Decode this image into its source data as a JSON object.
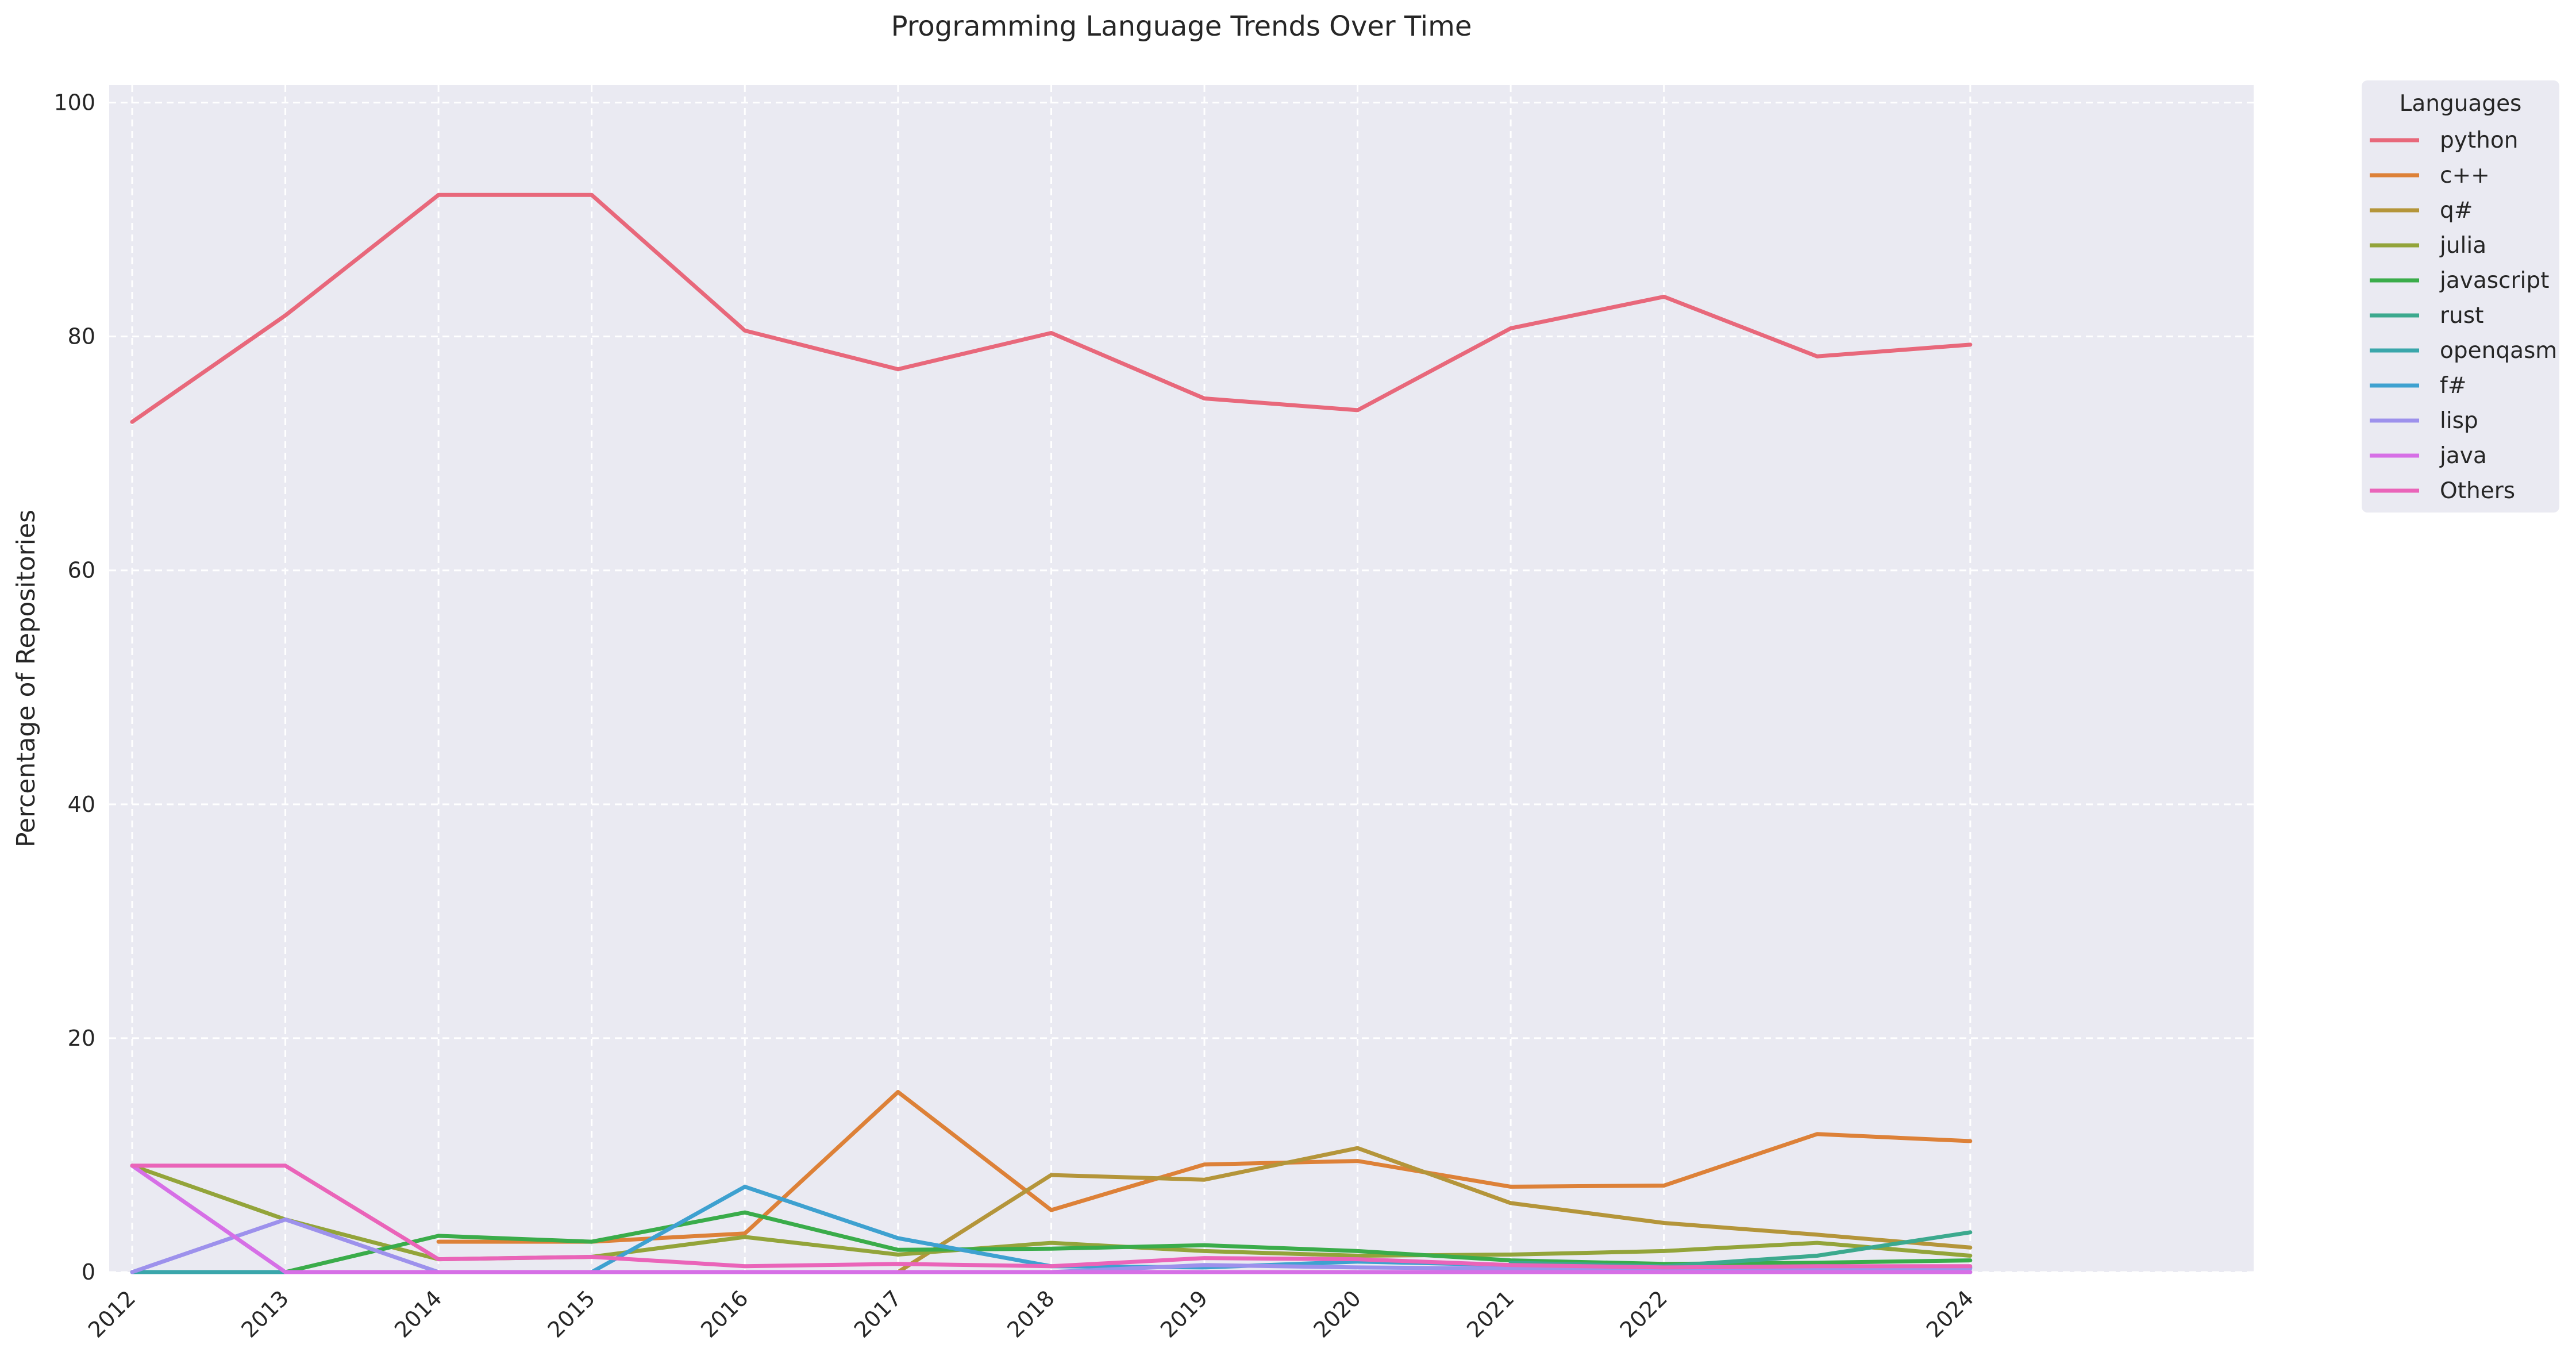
{
  "chart_data": {
    "type": "line",
    "title": "Programming Language Trends Over Time",
    "xlabel": "",
    "ylabel": "Percentage of Repositories",
    "xlim": [
      2011.85,
      2025.85
    ],
    "ylim": [
      0,
      101.5
    ],
    "x_ticks": [
      2012,
      2013,
      2014,
      2015,
      2016,
      2017,
      2018,
      2019,
      2020,
      2021,
      2022,
      2024
    ],
    "y_ticks": [
      0,
      20,
      40,
      60,
      80,
      100
    ],
    "x": [
      2012,
      2013,
      2014,
      2015,
      2016,
      2017,
      2018,
      2019,
      2020,
      2021,
      2022,
      2023,
      2024
    ],
    "grid": true,
    "legend": {
      "title": "Languages",
      "placement": "outside-top-right"
    },
    "series": [
      {
        "name": "python",
        "color": "#e8687b",
        "values": [
          72.7,
          81.8,
          92.1,
          92.1,
          80.5,
          77.2,
          80.3,
          74.7,
          73.7,
          80.7,
          83.4,
          78.3,
          79.3
        ]
      },
      {
        "name": "c++",
        "color": "#dd8138",
        "values": [
          null,
          null,
          2.6,
          2.6,
          3.3,
          15.4,
          5.3,
          9.2,
          9.5,
          7.3,
          7.4,
          11.8,
          11.2
        ]
      },
      {
        "name": "q#",
        "color": "#b4953a",
        "values": [
          null,
          null,
          null,
          null,
          null,
          0.0,
          8.3,
          7.9,
          10.6,
          5.9,
          4.2,
          3.2,
          2.1
        ]
      },
      {
        "name": "julia",
        "color": "#93a43a",
        "values": [
          9.1,
          4.5,
          1.1,
          1.3,
          3.0,
          1.5,
          2.5,
          1.8,
          1.4,
          1.5,
          1.8,
          2.5,
          1.4
        ]
      },
      {
        "name": "javascript",
        "color": "#3aac4a",
        "values": [
          null,
          0.0,
          3.1,
          2.6,
          5.1,
          1.9,
          2.0,
          2.3,
          1.8,
          1.0,
          0.7,
          0.8,
          1.0
        ]
      },
      {
        "name": "rust",
        "color": "#3ca98e",
        "values": [
          null,
          null,
          null,
          null,
          null,
          null,
          null,
          null,
          null,
          0.8,
          0.5,
          1.4,
          3.4
        ]
      },
      {
        "name": "openqasm",
        "color": "#3aa6ab",
        "values": [
          0.0,
          0.0,
          0.0,
          0.0,
          0.0,
          0.0,
          0.0,
          0.0,
          0.0,
          0.0,
          0.0,
          0.0,
          0.0
        ]
      },
      {
        "name": "f#",
        "color": "#3ea1d0",
        "values": [
          null,
          null,
          null,
          0.0,
          7.3,
          2.9,
          0.5,
          0.4,
          0.9,
          0.6,
          0.3,
          0.4,
          0.4
        ]
      },
      {
        "name": "lisp",
        "color": "#9d91ec",
        "values": [
          0.0,
          4.5,
          0.0,
          0.0,
          0.0,
          0.0,
          0.0,
          0.6,
          0.4,
          0.3,
          0.2,
          0.3,
          0.3
        ]
      },
      {
        "name": "java",
        "color": "#d66fe6",
        "values": [
          9.1,
          0.0,
          0.0,
          0.0,
          0.0,
          0.0,
          0.0,
          0.0,
          0.0,
          0.0,
          0.0,
          0.0,
          0.0
        ]
      },
      {
        "name": "Others",
        "color": "#ea64b9",
        "values": [
          9.1,
          9.1,
          1.1,
          1.3,
          0.5,
          0.7,
          0.5,
          1.2,
          1.1,
          0.6,
          0.4,
          0.5,
          0.5
        ]
      }
    ]
  }
}
